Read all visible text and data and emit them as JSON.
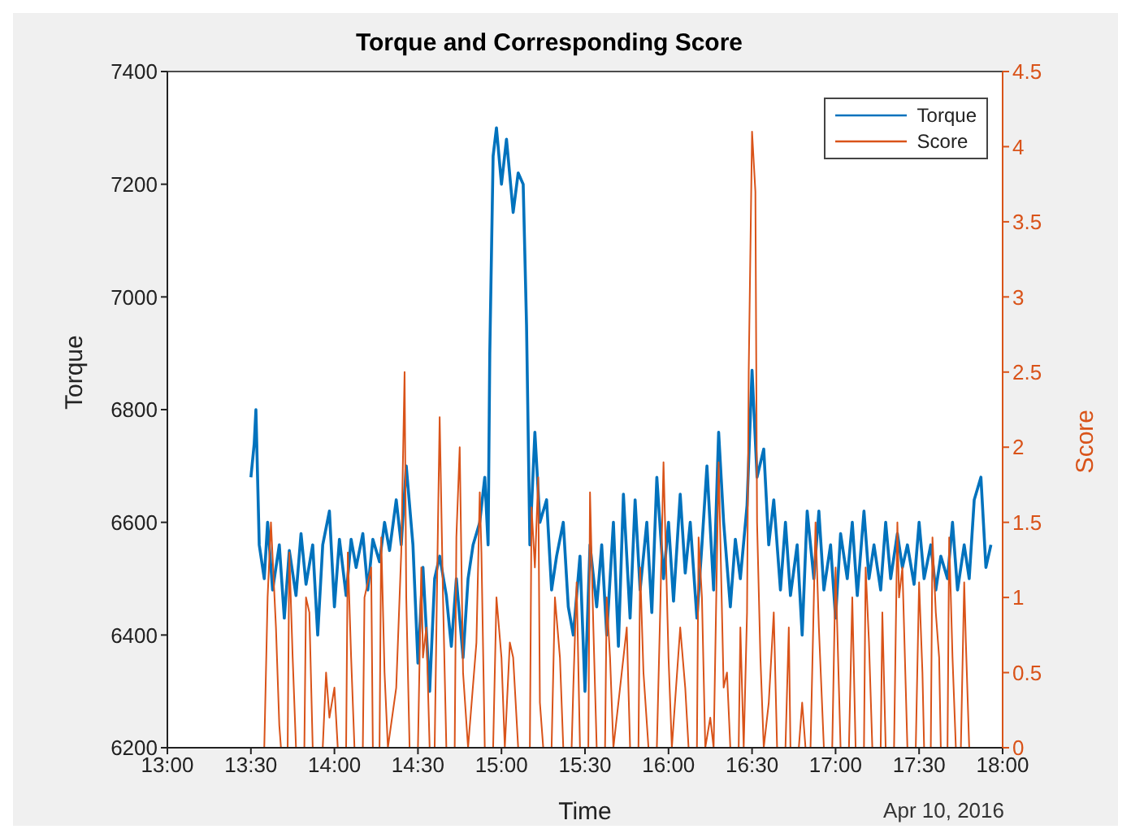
{
  "chart_data": {
    "type": "line",
    "title": "Torque and Corresponding Score",
    "xlabel": "Time",
    "ylabel": "Torque",
    "y2label": "Score",
    "annotations": [
      "Apr 10, 2016"
    ],
    "xlim": [
      13,
      18
    ],
    "xticks": [
      {
        "value": 13,
        "label": "13:00"
      },
      {
        "value": 13.5,
        "label": "13:30"
      },
      {
        "value": 14,
        "label": "14:00"
      },
      {
        "value": 14.5,
        "label": "14:30"
      },
      {
        "value": 15,
        "label": "15:00"
      },
      {
        "value": 15.5,
        "label": "15:30"
      },
      {
        "value": 16,
        "label": "16:00"
      },
      {
        "value": 16.5,
        "label": "16:30"
      },
      {
        "value": 17,
        "label": "17:00"
      },
      {
        "value": 17.5,
        "label": "17:30"
      },
      {
        "value": 18,
        "label": "18:00"
      }
    ],
    "ylim": [
      6200,
      7400
    ],
    "yticks": [
      6200,
      6400,
      6600,
      6800,
      7000,
      7200,
      7400
    ],
    "y2lim": [
      0,
      4.5
    ],
    "y2ticks": [
      0,
      0.5,
      1,
      1.5,
      2,
      2.5,
      3,
      3.5,
      4,
      4.5
    ],
    "grid": false,
    "legend": "top right",
    "marker": "none",
    "line_style": "solid",
    "series": [
      {
        "name": "Torque",
        "color": "#0072bd",
        "x": [
          13.5,
          13.52,
          13.53,
          13.55,
          13.58,
          13.6,
          13.63,
          13.67,
          13.7,
          13.73,
          13.77,
          13.8,
          13.83,
          13.87,
          13.9,
          13.93,
          13.97,
          14,
          14.03,
          14.07,
          14.1,
          14.13,
          14.17,
          14.2,
          14.23,
          14.27,
          14.3,
          14.33,
          14.37,
          14.4,
          14.43,
          14.47,
          14.5,
          14.53,
          14.57,
          14.6,
          14.63,
          14.67,
          14.7,
          14.73,
          14.77,
          14.8,
          14.83,
          14.87,
          14.9,
          14.92,
          14.93,
          14.95,
          14.97,
          15,
          15.03,
          15.07,
          15.1,
          15.13,
          15.15,
          15.17,
          15.2,
          15.23,
          15.27,
          15.3,
          15.33,
          15.37,
          15.4,
          15.43,
          15.47,
          15.5,
          15.53,
          15.57,
          15.6,
          15.63,
          15.67,
          15.7,
          15.73,
          15.77,
          15.8,
          15.83,
          15.87,
          15.9,
          15.93,
          15.97,
          16,
          16.03,
          16.07,
          16.1,
          16.13,
          16.17,
          16.2,
          16.23,
          16.27,
          16.3,
          16.33,
          16.37,
          16.4,
          16.43,
          16.47,
          16.5,
          16.53,
          16.57,
          16.6,
          16.63,
          16.67,
          16.7,
          16.73,
          16.77,
          16.8,
          16.83,
          16.87,
          16.9,
          16.93,
          16.97,
          17,
          17.03,
          17.07,
          17.1,
          17.13,
          17.17,
          17.2,
          17.23,
          17.27,
          17.3,
          17.33,
          17.37,
          17.4,
          17.43,
          17.47,
          17.5,
          17.53,
          17.57,
          17.6,
          17.63,
          17.67,
          17.7,
          17.73,
          17.77,
          17.8,
          17.83,
          17.87,
          17.9,
          17.93
        ],
        "values": [
          6680,
          6740,
          6800,
          6560,
          6500,
          6600,
          6480,
          6560,
          6430,
          6550,
          6470,
          6580,
          6490,
          6560,
          6400,
          6560,
          6620,
          6450,
          6570,
          6470,
          6570,
          6520,
          6580,
          6480,
          6570,
          6530,
          6600,
          6550,
          6640,
          6560,
          6700,
          6560,
          6350,
          6520,
          6300,
          6500,
          6540,
          6470,
          6380,
          6500,
          6360,
          6500,
          6560,
          6600,
          6680,
          6560,
          6900,
          7250,
          7300,
          7200,
          7280,
          7150,
          7220,
          7200,
          6950,
          6560,
          6760,
          6600,
          6640,
          6480,
          6540,
          6600,
          6450,
          6400,
          6540,
          6300,
          6560,
          6450,
          6560,
          6400,
          6600,
          6380,
          6650,
          6430,
          6640,
          6480,
          6600,
          6440,
          6680,
          6500,
          6600,
          6460,
          6650,
          6510,
          6600,
          6430,
          6560,
          6700,
          6480,
          6760,
          6600,
          6450,
          6570,
          6500,
          6630,
          6870,
          6680,
          6730,
          6560,
          6640,
          6480,
          6600,
          6470,
          6560,
          6400,
          6620,
          6500,
          6620,
          6480,
          6560,
          6430,
          6580,
          6500,
          6600,
          6470,
          6620,
          6500,
          6560,
          6480,
          6600,
          6500,
          6580,
          6520,
          6560,
          6490,
          6600,
          6500,
          6560,
          6480,
          6540,
          6500,
          6600,
          6480,
          6560,
          6500,
          6640,
          6680,
          6520,
          6560
        ]
      },
      {
        "name": "Score",
        "color": "#d95319",
        "axis": "y2",
        "x": [
          13.58,
          13.6,
          13.62,
          13.65,
          13.67,
          13.68,
          13.72,
          13.73,
          13.75,
          13.77,
          13.82,
          13.83,
          13.85,
          13.87,
          13.93,
          13.95,
          13.97,
          14,
          14.02,
          14.07,
          14.08,
          14.1,
          14.12,
          14.17,
          14.18,
          14.22,
          14.23,
          14.27,
          14.28,
          14.3,
          14.32,
          14.37,
          14.4,
          14.42,
          14.43,
          14.45,
          14.5,
          14.52,
          14.53,
          14.55,
          14.57,
          14.6,
          14.62,
          14.63,
          14.65,
          14.67,
          14.72,
          14.73,
          14.75,
          14.77,
          14.8,
          14.85,
          14.87,
          14.88,
          14.9,
          14.95,
          14.97,
          15,
          15.02,
          15.05,
          15.07,
          15.1,
          15.17,
          15.18,
          15.2,
          15.22,
          15.23,
          15.25,
          15.3,
          15.32,
          15.35,
          15.37,
          15.42,
          15.43,
          15.45,
          15.47,
          15.52,
          15.53,
          15.55,
          15.57,
          15.62,
          15.63,
          15.65,
          15.67,
          15.72,
          15.75,
          15.77,
          15.82,
          15.83,
          15.85,
          15.88,
          15.93,
          15.95,
          15.97,
          16,
          16.02,
          16.07,
          16.1,
          16.12,
          16.17,
          16.18,
          16.2,
          16.22,
          16.25,
          16.27,
          16.3,
          16.33,
          16.35,
          16.37,
          16.42,
          16.43,
          16.45,
          16.47,
          16.48,
          16.5,
          16.52,
          16.53,
          16.55,
          16.57,
          16.6,
          16.63,
          16.65,
          16.7,
          16.72,
          16.73,
          16.78,
          16.8,
          16.82,
          16.85,
          16.87,
          16.88,
          16.9,
          16.93,
          16.98,
          17,
          17.02,
          17.03,
          17.08,
          17.1,
          17.12,
          17.17,
          17.18,
          17.2,
          17.22,
          17.27,
          17.28,
          17.3,
          17.35,
          17.37,
          17.38,
          17.4,
          17.42,
          17.43,
          17.48,
          17.5,
          17.52,
          17.53,
          17.57,
          17.58,
          17.6,
          17.62,
          17.63,
          17.67,
          17.68,
          17.7,
          17.72,
          17.75,
          17.77,
          17.78,
          17.8,
          17.83
        ],
        "values": [
          0,
          1,
          1.5,
          0.8,
          0.15,
          0,
          0,
          1.3,
          0.6,
          0,
          0,
          1,
          0.9,
          0,
          0,
          0.5,
          0.2,
          0.4,
          0,
          0,
          1.3,
          0.6,
          0,
          0,
          1,
          1.2,
          0,
          0,
          1.4,
          0.5,
          0,
          0.4,
          1.3,
          2.5,
          1,
          0,
          0,
          1.2,
          0.6,
          0.8,
          0,
          0,
          1.5,
          2.2,
          1,
          0,
          0,
          1.4,
          2,
          0.5,
          0,
          0.7,
          1.7,
          1.3,
          0,
          0,
          1,
          0.6,
          0,
          0.7,
          0.6,
          0,
          0,
          1.6,
          1.2,
          1.8,
          0.3,
          0,
          0,
          1,
          0.6,
          0,
          0,
          0.4,
          1.1,
          0,
          0,
          1.7,
          0.8,
          0,
          0,
          1,
          0.6,
          0,
          0.5,
          0.8,
          0,
          0,
          1.2,
          0.5,
          0,
          0,
          0.9,
          1.9,
          0.6,
          0,
          0.8,
          0.4,
          0,
          0,
          1.4,
          1,
          0,
          0.2,
          0,
          1.9,
          0.4,
          0.5,
          0,
          0,
          0.8,
          0,
          0.9,
          2.5,
          4.1,
          3.7,
          1.5,
          0.6,
          0,
          0.3,
          0.9,
          0,
          0,
          0.8,
          0,
          0,
          0.3,
          0,
          0,
          1,
          1.5,
          0.8,
          0,
          0,
          1.2,
          0.4,
          0,
          0,
          1,
          0,
          0,
          1.2,
          0.7,
          0,
          0,
          0.9,
          0,
          0,
          1.5,
          1,
          1.2,
          0.4,
          0,
          0,
          1.1,
          0.5,
          0,
          0,
          1.4,
          0.9,
          0.6,
          0,
          0,
          1.4,
          0.6,
          0,
          0,
          1.1,
          0.7,
          0,
          0
        ]
      }
    ]
  }
}
